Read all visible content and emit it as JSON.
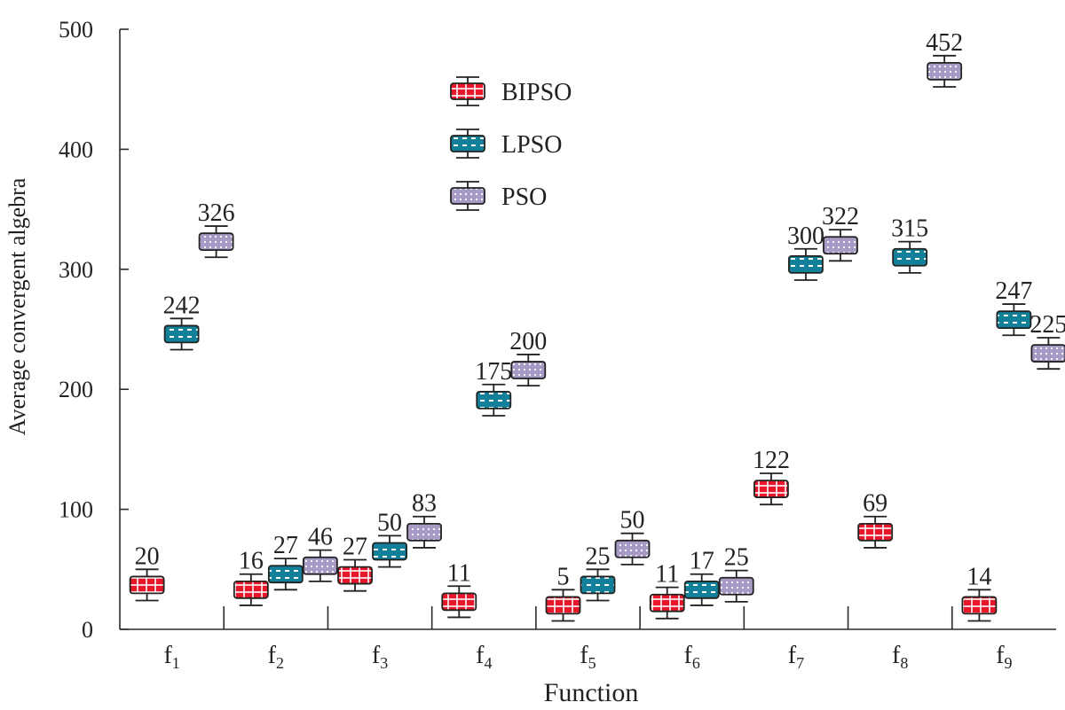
{
  "colors": {
    "axis": "#2a2a2a",
    "BIPSO": {
      "fill": "#e8182a",
      "pattern": "#ffffff",
      "whisker": "#222222"
    },
    "LPSO": {
      "fill": "#13809a",
      "pattern": "#ffffff",
      "whisker": "#222222"
    },
    "PSO": {
      "fill": "#a79bc6",
      "pattern": "#ffffff",
      "whisker": "#222222"
    }
  },
  "chart_data": {
    "type": "box",
    "title": "",
    "xlabel": "Function",
    "ylabel": "Average convergent algebra",
    "ylim": [
      0,
      500
    ],
    "yticks": [
      0,
      100,
      200,
      300,
      400,
      500
    ],
    "categories": [
      {
        "base": "f",
        "sub": "1"
      },
      {
        "base": "f",
        "sub": "2"
      },
      {
        "base": "f",
        "sub": "3"
      },
      {
        "base": "f",
        "sub": "4"
      },
      {
        "base": "f",
        "sub": "5"
      },
      {
        "base": "f",
        "sub": "6"
      },
      {
        "base": "f",
        "sub": "7"
      },
      {
        "base": "f",
        "sub": "8"
      },
      {
        "base": "f",
        "sub": "9"
      }
    ],
    "legend": [
      "BIPSO",
      "LPSO",
      "PSO"
    ],
    "legend_position": "top-center",
    "series": [
      {
        "name": "BIPSO",
        "values": [
          37,
          33,
          45,
          23,
          20,
          22,
          117,
          81,
          20
        ],
        "labels": [
          "20",
          "16",
          "27",
          "11",
          "5",
          "11",
          "122",
          "69",
          "14"
        ]
      },
      {
        "name": "LPSO",
        "values": [
          246,
          46,
          65,
          191,
          37,
          33,
          304,
          310,
          258
        ],
        "labels": [
          "242",
          "27",
          "50",
          "175",
          "25",
          "17",
          "300",
          "315",
          "247"
        ]
      },
      {
        "name": "PSO",
        "values": [
          323,
          53,
          81,
          216,
          67,
          36,
          320,
          465,
          230
        ],
        "labels": [
          "326",
          "46",
          "83",
          "200",
          "50",
          "25",
          "322",
          "",
          "225"
        ]
      }
    ],
    "box_half_range": 7,
    "whisker_half_range": 13,
    "extra_annotations": [
      {
        "category_index": 7,
        "text": "452"
      }
    ]
  }
}
